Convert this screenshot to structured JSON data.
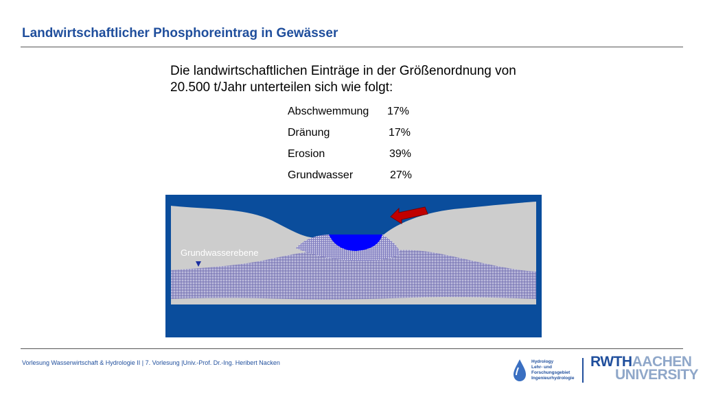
{
  "slide": {
    "title": "Landwirtschaftlicher Phosphoreintrag in Gewässer",
    "intro": "Die landwirtschaftlichen Einträge in der Größenordnung von 20.500 t/Jahr  unterteilen sich wie folgt:",
    "breakdown": [
      {
        "label": "Abschwemmung",
        "value": "17%"
      },
      {
        "label": "Dränung",
        "value": "17%"
      },
      {
        "label": "Erosion",
        "value": "39%"
      },
      {
        "label": "Grundwasser",
        "value": "27%"
      }
    ]
  },
  "diagram": {
    "groundwater_label": "Grundwasserebene",
    "colors": {
      "background": "#0a4d9c",
      "soil": "#cdcdcd",
      "water": "#0000ff",
      "groundwater_band": "#9a98c8",
      "arrow": "#c00000"
    },
    "icons": [
      "water-table-marker-icon",
      "inflow-arrow-icon"
    ]
  },
  "footer": {
    "text": "Vorlesung Wasserwirtschaft & Hydrologie II | 7. Vorlesung |Univ.-Prof. Dr.-Ing. Heribert Nacken",
    "logo_hydro": [
      "Hydrology",
      "Lehr- und",
      "Forschungsgebiet",
      "Ingenieurhydrologie"
    ],
    "logo_rwth_line1_a": "RWTH",
    "logo_rwth_line1_b": "AACHEN",
    "logo_rwth_line2": "UNIVERSITY"
  }
}
